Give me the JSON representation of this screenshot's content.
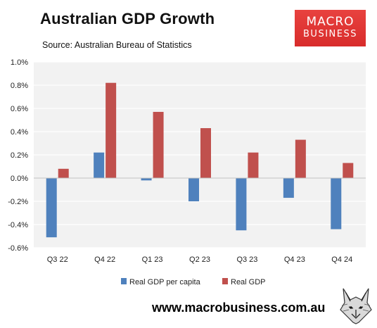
{
  "header": {
    "title": "Australian GDP Growth",
    "source": "Source: Australian Bureau of Statistics"
  },
  "logo": {
    "line1": "MACRO",
    "line2": "BUSINESS",
    "color": "#e0302f"
  },
  "footer": {
    "url": "www.macrobusiness.com.au"
  },
  "chart_data": {
    "type": "bar",
    "categories": [
      "Q3 22",
      "Q4 22",
      "Q1 23",
      "Q2 23",
      "Q3 23",
      "Q4 23",
      "Q4 24"
    ],
    "series": [
      {
        "name": "Real GDP per capita",
        "color": "#4f81bd",
        "values": [
          -0.51,
          0.22,
          -0.02,
          -0.2,
          -0.45,
          -0.17,
          -0.44
        ]
      },
      {
        "name": "Real GDP",
        "color": "#c0504d",
        "values": [
          0.08,
          0.82,
          0.57,
          0.43,
          0.22,
          0.33,
          0.13
        ]
      }
    ],
    "ylim": [
      -0.6,
      1.0
    ],
    "yticks": [
      "1.0%",
      "0.8%",
      "0.6%",
      "0.4%",
      "0.2%",
      "0.0%",
      "-0.2%",
      "-0.4%",
      "-0.6%"
    ],
    "ytick_values": [
      1.0,
      0.8,
      0.6,
      0.4,
      0.2,
      0.0,
      -0.2,
      -0.4,
      -0.6
    ],
    "grid": true,
    "legend_position": "bottom",
    "plot_background": "#f2f2f2"
  }
}
